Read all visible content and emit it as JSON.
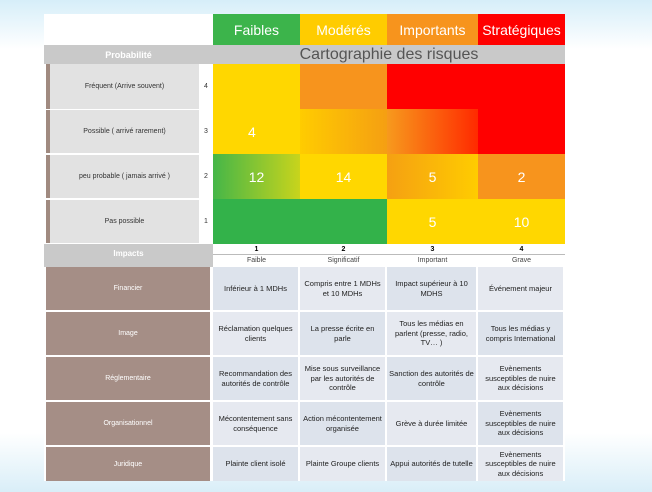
{
  "levels": [
    {
      "label": "Faibles",
      "color": "#3cb44b"
    },
    {
      "label": "Modérés",
      "color": "#ffcc00"
    },
    {
      "label": "Importants",
      "color": "#f7941d"
    },
    {
      "label": "Stratégiques",
      "color": "#ff0000"
    }
  ],
  "probability_header": "Probabilité",
  "title": "Cartographie des risques",
  "rows": [
    {
      "label": "Fréquent (Arrive souvent)",
      "num": "4",
      "values": [
        "",
        "",
        "",
        ""
      ]
    },
    {
      "label": "Possible ( arrivé rarement)",
      "num": "3",
      "values": [
        "4",
        "",
        "",
        ""
      ]
    },
    {
      "label": "peu probable ( jamais arrivé )",
      "num": "2",
      "values": [
        "12",
        "14",
        "5",
        "2"
      ]
    },
    {
      "label": "Pas possible",
      "num": "1",
      "values": [
        "",
        "",
        "5",
        "10"
      ]
    }
  ],
  "impacts_header": "Impacts",
  "impact_columns": [
    {
      "num": "1",
      "label": "Faible"
    },
    {
      "num": "2",
      "label": "Significatif"
    },
    {
      "num": "3",
      "label": "Important"
    },
    {
      "num": "4",
      "label": "Grave"
    }
  ],
  "impact_rows": [
    {
      "label": "Financier",
      "cells": [
        "Inférieur à 1 MDHs",
        "Compris entre 1 MDHs et 10 MDHs",
        "Impact supérieur à 10 MDHS",
        "Événement majeur"
      ]
    },
    {
      "label": "Image",
      "cells": [
        "Réclamation quelques clients",
        "La presse écrite en parle",
        "Tous les médias en parlent (presse, radio, TV… )",
        "Tous les médias y compris International"
      ]
    },
    {
      "label": "Réglementaire",
      "cells": [
        "Recommandation des autorités de contrôle",
        "Mise sous surveillance par les autorités de contrôle",
        "Sanction des autorités de contrôle",
        "Evènements susceptibles de nuire aux décisions"
      ]
    },
    {
      "label": "Organisationnel",
      "cells": [
        "Mécontentement sans conséquence",
        "Action mécontentement organisée",
        "Grève à durée limitée",
        "Evènements susceptibles de nuire aux décisions"
      ]
    },
    {
      "label": "Juridique",
      "cells": [
        "Plainte client isolé",
        "Plainte Groupe clients",
        "Appui autorités de tutelle",
        "Evènements susceptibles de nuire aux décisions"
      ]
    }
  ]
}
